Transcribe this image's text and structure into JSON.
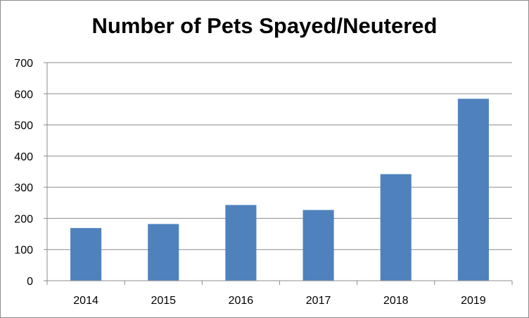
{
  "chart_data": {
    "type": "bar",
    "title": "Number of Pets Spayed/Neutered",
    "xlabel": "",
    "ylabel": "",
    "categories": [
      "2014",
      "2015",
      "2016",
      "2017",
      "2018",
      "2019"
    ],
    "series": [
      {
        "values": [
          169,
          182,
          243,
          227,
          342,
          584
        ]
      }
    ],
    "ylim": [
      0,
      700
    ],
    "yticks": [
      "0",
      "100",
      "200",
      "300",
      "400",
      "500",
      "600",
      "700"
    ],
    "grid": true,
    "legend": "none",
    "colors": {
      "bar": "#4f81bd",
      "grid": "#8c8c8c",
      "axis": "#8c8c8c"
    }
  }
}
